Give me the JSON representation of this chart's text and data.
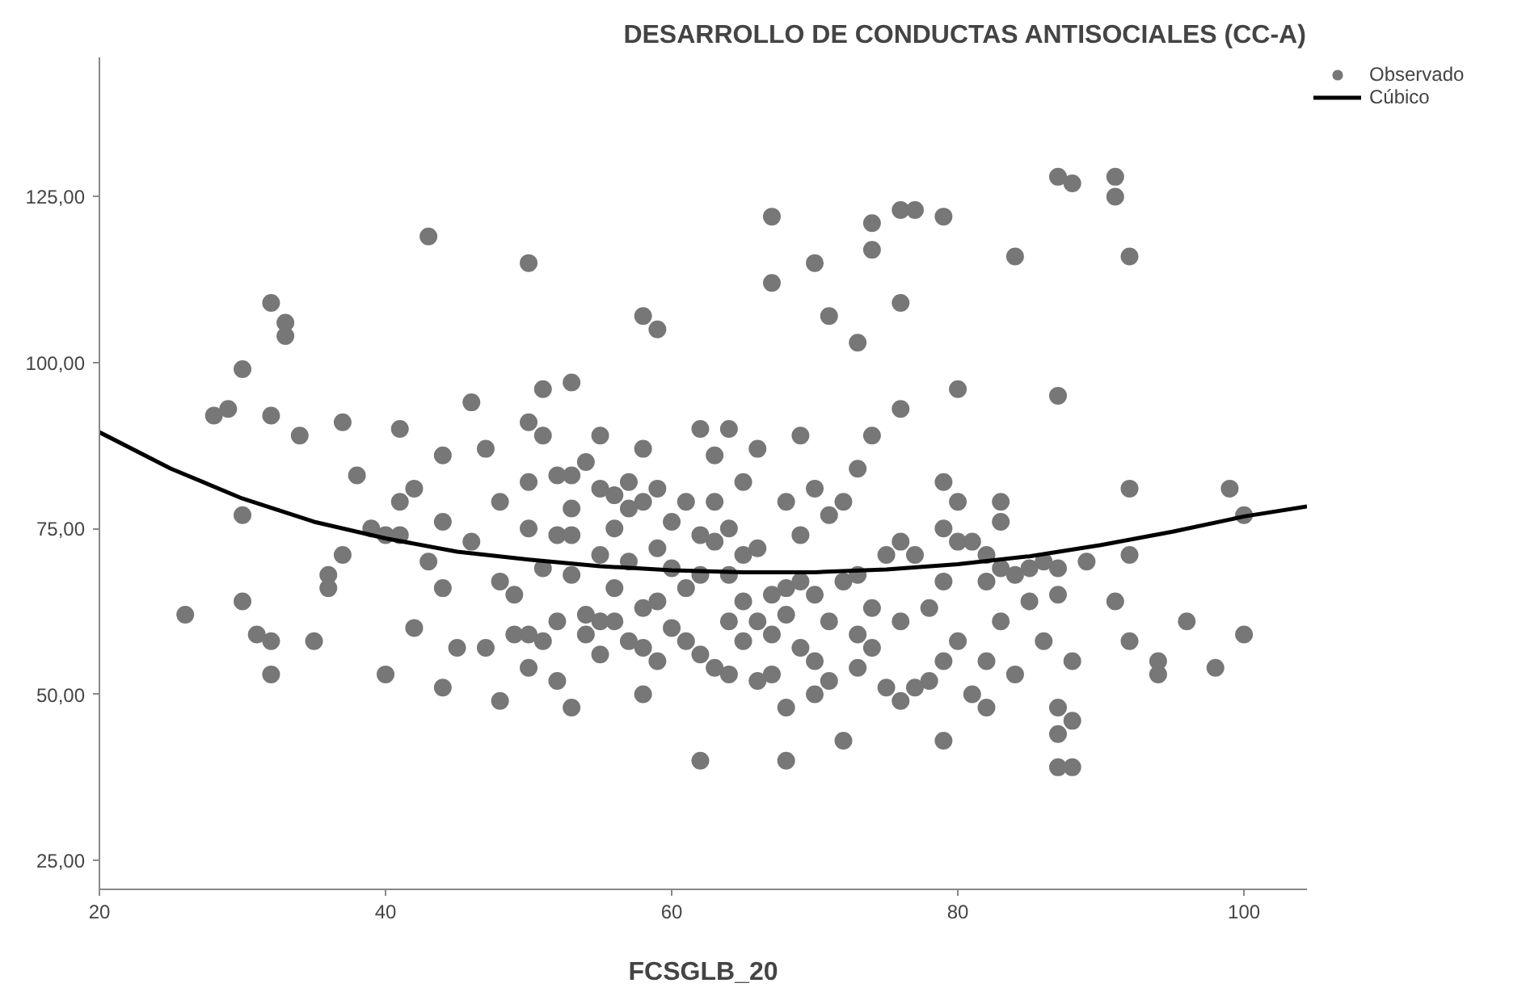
{
  "chart_data": {
    "type": "scatter",
    "title": "DESARROLLO DE CONDUCTAS ANTISOCIALES (CC-A)",
    "xlabel": "FCSGLB_20",
    "xlim": [
      20,
      104.4
    ],
    "ylim": [
      20.6,
      146
    ],
    "xticks": [
      20,
      40,
      60,
      80,
      100
    ],
    "yticks": [
      {
        "value": 25,
        "label": "25,00"
      },
      {
        "value": 50,
        "label": "50,00"
      },
      {
        "value": 75,
        "label": "75,00"
      },
      {
        "value": 100,
        "label": "100,00"
      },
      {
        "value": 125,
        "label": "125,00"
      }
    ],
    "grid": false,
    "legend": "top right",
    "series": [
      {
        "name": "Observado",
        "color": "#777777",
        "marker": "circle",
        "x": [
          26,
          28,
          29,
          30,
          30,
          30,
          31,
          32,
          32,
          32,
          32,
          33,
          33,
          34,
          35,
          36,
          36,
          37,
          37,
          38,
          39,
          40,
          40,
          41,
          41,
          41,
          42,
          42,
          43,
          43,
          44,
          44,
          44,
          44,
          45,
          46,
          46,
          47,
          47,
          48,
          48,
          48,
          49,
          49,
          50,
          50,
          50,
          50,
          50,
          50,
          51,
          51,
          51,
          51,
          52,
          52,
          52,
          52,
          53,
          53,
          53,
          53,
          53,
          53,
          54,
          54,
          54,
          55,
          55,
          55,
          55,
          55,
          56,
          56,
          56,
          56,
          57,
          57,
          57,
          57,
          58,
          58,
          58,
          58,
          58,
          58,
          59,
          59,
          59,
          59,
          59,
          60,
          60,
          60,
          61,
          61,
          61,
          62,
          62,
          62,
          62,
          62,
          63,
          63,
          63,
          63,
          64,
          64,
          64,
          64,
          64,
          65,
          65,
          65,
          65,
          66,
          66,
          66,
          66,
          67,
          67,
          67,
          67,
          67,
          68,
          68,
          68,
          68,
          68,
          69,
          69,
          69,
          69,
          70,
          70,
          70,
          70,
          70,
          71,
          71,
          71,
          71,
          72,
          72,
          72,
          73,
          73,
          73,
          73,
          73,
          74,
          74,
          74,
          74,
          74,
          75,
          75,
          76,
          76,
          76,
          76,
          76,
          76,
          77,
          77,
          77,
          78,
          78,
          79,
          79,
          79,
          79,
          79,
          79,
          80,
          80,
          80,
          80,
          81,
          81,
          82,
          82,
          82,
          82,
          83,
          83,
          83,
          83,
          84,
          84,
          84,
          85,
          85,
          86,
          86,
          87,
          87,
          87,
          87,
          87,
          87,
          87,
          88,
          88,
          88,
          88,
          89,
          91,
          91,
          91,
          92,
          92,
          92,
          92,
          94,
          94,
          96,
          98,
          99,
          100,
          100
        ],
        "values": [
          62,
          92,
          93,
          99,
          77,
          64,
          59,
          109,
          92,
          58,
          53,
          106,
          104,
          89,
          58,
          68,
          66,
          91,
          71,
          83,
          75,
          74,
          53,
          90,
          79,
          74,
          81,
          60,
          119,
          70,
          86,
          76,
          66,
          51,
          57,
          94,
          73,
          87,
          57,
          79,
          67,
          49,
          65,
          59,
          91,
          115,
          82,
          75,
          59,
          54,
          96,
          89,
          69,
          58,
          83,
          74,
          61,
          52,
          97,
          83,
          78,
          74,
          68,
          48,
          85,
          62,
          59,
          89,
          81,
          71,
          56,
          61,
          80,
          75,
          66,
          61,
          82,
          78,
          70,
          58,
          107,
          87,
          79,
          63,
          57,
          50,
          105,
          81,
          72,
          64,
          55,
          76,
          69,
          60,
          79,
          66,
          58,
          90,
          74,
          68,
          56,
          40,
          86,
          79,
          73,
          54,
          90,
          75,
          68,
          61,
          53,
          82,
          71,
          64,
          58,
          87,
          72,
          61,
          52,
          122,
          112,
          65,
          59,
          53,
          79,
          66,
          62,
          48,
          40,
          89,
          74,
          67,
          57,
          115,
          81,
          65,
          55,
          50,
          107,
          77,
          61,
          52,
          79,
          67,
          43,
          103,
          84,
          68,
          59,
          54,
          121,
          117,
          89,
          63,
          57,
          71,
          51,
          123,
          109,
          93,
          73,
          61,
          49,
          123,
          71,
          51,
          63,
          52,
          122,
          82,
          75,
          67,
          55,
          43,
          96,
          79,
          73,
          58,
          73,
          50,
          71,
          67,
          55,
          48,
          79,
          76,
          69,
          61,
          116,
          68,
          53,
          69,
          64,
          70,
          58,
          128,
          95,
          69,
          65,
          48,
          44,
          39,
          127,
          55,
          46,
          39,
          70,
          128,
          125,
          64,
          116,
          81,
          71,
          58,
          55,
          53,
          61,
          54,
          81,
          77,
          59
        ]
      },
      {
        "name": "Cúbico",
        "type": "line",
        "color": "#000000",
        "line_style": "solid",
        "x": [
          20,
          25,
          30,
          35,
          40,
          45,
          50,
          55,
          60,
          65,
          70,
          75,
          80,
          85,
          90,
          95,
          100,
          104.4
        ],
        "values": [
          89.5,
          84,
          79.5,
          76,
          73.5,
          71.5,
          70.3,
          69.3,
          68.7,
          68.4,
          68.4,
          68.8,
          69.6,
          70.8,
          72.5,
          74.5,
          76.8,
          78.3
        ]
      }
    ]
  }
}
